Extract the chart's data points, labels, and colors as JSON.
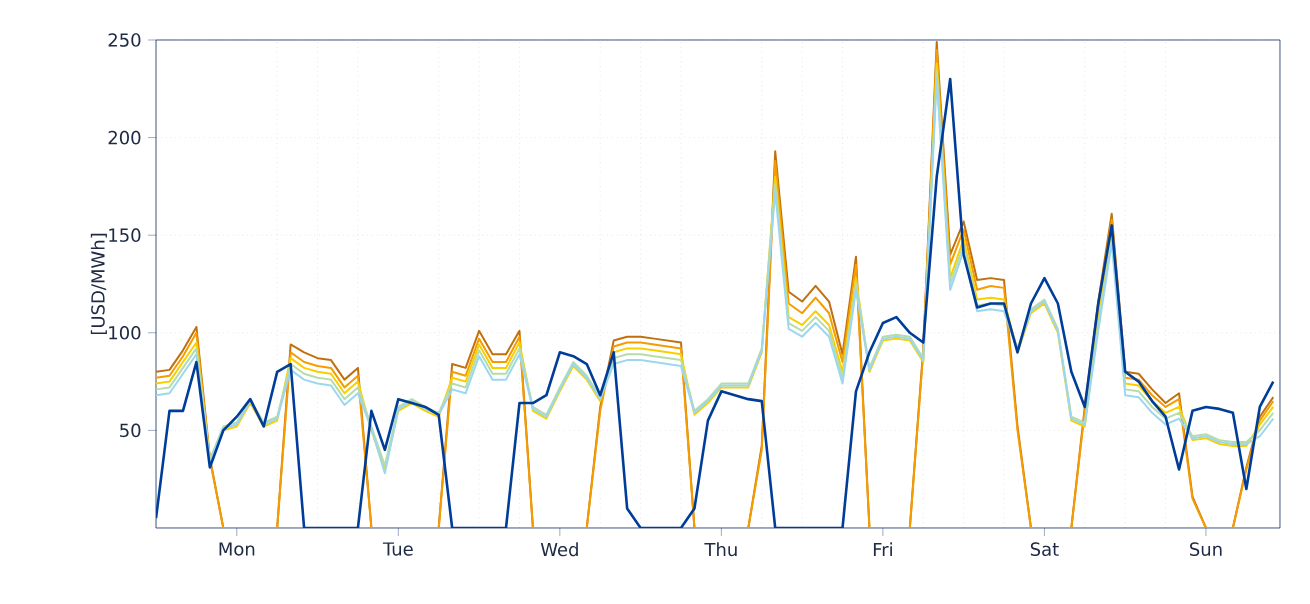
{
  "chart_data": {
    "type": "line",
    "ylabel": "[USD/MWh]",
    "categories": [
      null,
      null,
      null,
      null,
      null,
      null,
      "Mon",
      null,
      null,
      null,
      null,
      null,
      null,
      null,
      null,
      null,
      null,
      null,
      "Tue",
      null,
      null,
      null,
      null,
      null,
      null,
      null,
      null,
      null,
      null,
      null,
      "Wed",
      null,
      null,
      null,
      null,
      null,
      null,
      null,
      null,
      null,
      null,
      null,
      "Thu",
      null,
      null,
      null,
      null,
      null,
      null,
      null,
      null,
      null,
      null,
      null,
      "Fri",
      null,
      null,
      null,
      null,
      null,
      null,
      null,
      null,
      null,
      null,
      null,
      "Sat",
      null,
      null,
      null,
      null,
      null,
      null,
      null,
      null,
      null,
      null,
      null,
      "Sun",
      null,
      null,
      null,
      null,
      null
    ],
    "ylim": [
      0,
      250
    ],
    "yticks": [
      50,
      100,
      150,
      200,
      250
    ],
    "grid": true,
    "series": [
      {
        "color": "#c0700c",
        "values": [
          80,
          81,
          91,
          103,
          36,
          0,
          0,
          0,
          0,
          0,
          94,
          90,
          87,
          86,
          76,
          82,
          0,
          0,
          0,
          0,
          0,
          0,
          84,
          82,
          101,
          89,
          89,
          101,
          0,
          0,
          0,
          0,
          0,
          62,
          96,
          98,
          98,
          97,
          96,
          95,
          0,
          0,
          0,
          0,
          0,
          42,
          193,
          121,
          116,
          124,
          116,
          89,
          139,
          0,
          0,
          0,
          0,
          92,
          249,
          140,
          157,
          127,
          128,
          127,
          52,
          0,
          0,
          0,
          0,
          62,
          116,
          161,
          80,
          79,
          71,
          64,
          69,
          16,
          0,
          0,
          0,
          31,
          57,
          67
        ]
      },
      {
        "color": "#f59c00",
        "values": [
          77,
          78,
          88,
          100,
          35,
          0,
          0,
          0,
          0,
          0,
          90,
          85,
          83,
          82,
          72,
          78,
          0,
          0,
          0,
          0,
          0,
          0,
          80,
          78,
          97,
          85,
          85,
          98,
          0,
          0,
          0,
          0,
          0,
          60,
          93,
          95,
          95,
          94,
          93,
          92,
          0,
          0,
          0,
          0,
          0,
          40,
          188,
          115,
          110,
          118,
          110,
          85,
          135,
          0,
          0,
          0,
          0,
          90,
          245,
          135,
          153,
          122,
          124,
          123,
          50,
          0,
          0,
          0,
          0,
          60,
          112,
          158,
          77,
          76,
          68,
          62,
          66,
          15,
          0,
          0,
          0,
          30,
          55,
          65
        ]
      },
      {
        "color": "#f8d000",
        "values": [
          74,
          75,
          85,
          95,
          35,
          50,
          52,
          64,
          52,
          55,
          87,
          82,
          80,
          79,
          69,
          75,
          50,
          30,
          60,
          64,
          60,
          57,
          77,
          75,
          94,
          82,
          82,
          95,
          60,
          56,
          70,
          83,
          76,
          65,
          90,
          92,
          92,
          91,
          90,
          89,
          58,
          64,
          72,
          72,
          72,
          90,
          180,
          108,
          104,
          111,
          104,
          80,
          128,
          80,
          96,
          97,
          96,
          85,
          238,
          128,
          148,
          117,
          118,
          117,
          90,
          110,
          115,
          100,
          55,
          52,
          107,
          152,
          74,
          73,
          65,
          59,
          62,
          45,
          46,
          43,
          42,
          42,
          53,
          62
        ]
      },
      {
        "color": "#b8dca8",
        "values": [
          71,
          72,
          82,
          92,
          35,
          52,
          54,
          66,
          54,
          57,
          84,
          79,
          77,
          76,
          66,
          72,
          52,
          32,
          62,
          66,
          62,
          59,
          74,
          72,
          91,
          79,
          79,
          92,
          62,
          58,
          72,
          85,
          78,
          67,
          87,
          89,
          89,
          88,
          87,
          86,
          60,
          66,
          74,
          74,
          74,
          92,
          176,
          105,
          101,
          108,
          101,
          77,
          125,
          82,
          98,
          99,
          98,
          87,
          234,
          125,
          145,
          114,
          115,
          114,
          92,
          112,
          117,
          102,
          57,
          54,
          104,
          149,
          71,
          70,
          62,
          56,
          59,
          47,
          48,
          45,
          44,
          44,
          50,
          59
        ]
      },
      {
        "color": "#9bd7f0",
        "values": [
          68,
          69,
          79,
          89,
          34,
          51,
          53,
          65,
          53,
          56,
          81,
          76,
          74,
          73,
          63,
          69,
          51,
          28,
          61,
          65,
          61,
          58,
          71,
          69,
          88,
          76,
          76,
          89,
          61,
          57,
          71,
          84,
          77,
          66,
          84,
          86,
          86,
          85,
          84,
          83,
          59,
          65,
          73,
          73,
          73,
          91,
          172,
          102,
          98,
          105,
          98,
          74,
          122,
          81,
          97,
          98,
          97,
          86,
          230,
          122,
          142,
          111,
          112,
          111,
          91,
          111,
          116,
          101,
          56,
          53,
          101,
          146,
          68,
          67,
          59,
          53,
          56,
          46,
          47,
          44,
          43,
          43,
          47,
          56
        ]
      },
      {
        "color": "#003d99",
        "values": [
          5,
          60,
          60,
          85,
          31,
          50,
          57,
          66,
          52,
          80,
          84,
          0,
          0,
          0,
          0,
          0,
          60,
          40,
          66,
          64,
          62,
          58,
          0,
          0,
          0,
          0,
          0,
          64,
          64,
          68,
          90,
          88,
          84,
          68,
          90,
          10,
          0,
          0,
          0,
          0,
          10,
          55,
          70,
          68,
          66,
          65,
          0,
          0,
          0,
          0,
          0,
          0,
          70,
          90,
          105,
          108,
          100,
          95,
          180,
          230,
          140,
          113,
          115,
          115,
          90,
          115,
          128,
          115,
          80,
          62,
          115,
          155,
          80,
          75,
          65,
          57,
          30,
          60,
          62,
          61,
          59,
          20,
          62,
          75
        ]
      }
    ]
  }
}
